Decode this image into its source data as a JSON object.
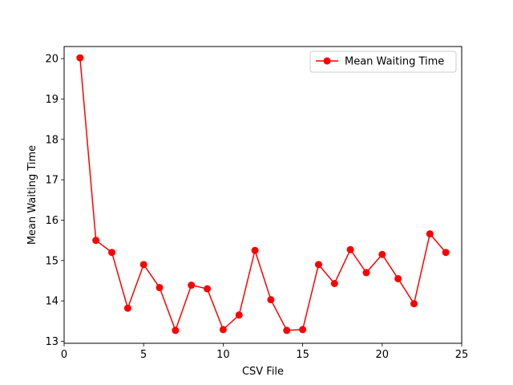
{
  "chart_data": {
    "type": "line",
    "title": "",
    "xlabel": "CSV File",
    "ylabel": "Mean Waiting Time",
    "xlim": [
      0,
      25
    ],
    "ylim": [
      12.95,
      20.3
    ],
    "x_ticks": [
      0,
      5,
      10,
      15,
      20,
      25
    ],
    "y_ticks": [
      13,
      14,
      15,
      16,
      17,
      18,
      19,
      20
    ],
    "grid": false,
    "legend_position": "top-right",
    "series": [
      {
        "name": "Mean Waiting Time",
        "color": "#ff0000",
        "marker": "circle",
        "x": [
          1,
          2,
          3,
          4,
          5,
          6,
          7,
          8,
          9,
          10,
          11,
          12,
          13,
          14,
          15,
          16,
          17,
          18,
          19,
          20,
          21,
          22,
          23,
          24
        ],
        "y": [
          20.02,
          15.5,
          15.2,
          13.82,
          14.9,
          14.33,
          13.27,
          14.39,
          14.3,
          13.29,
          13.65,
          15.25,
          14.03,
          13.27,
          13.29,
          14.9,
          14.43,
          15.27,
          14.7,
          15.15,
          14.55,
          13.93,
          15.66,
          15.2
        ]
      }
    ]
  }
}
